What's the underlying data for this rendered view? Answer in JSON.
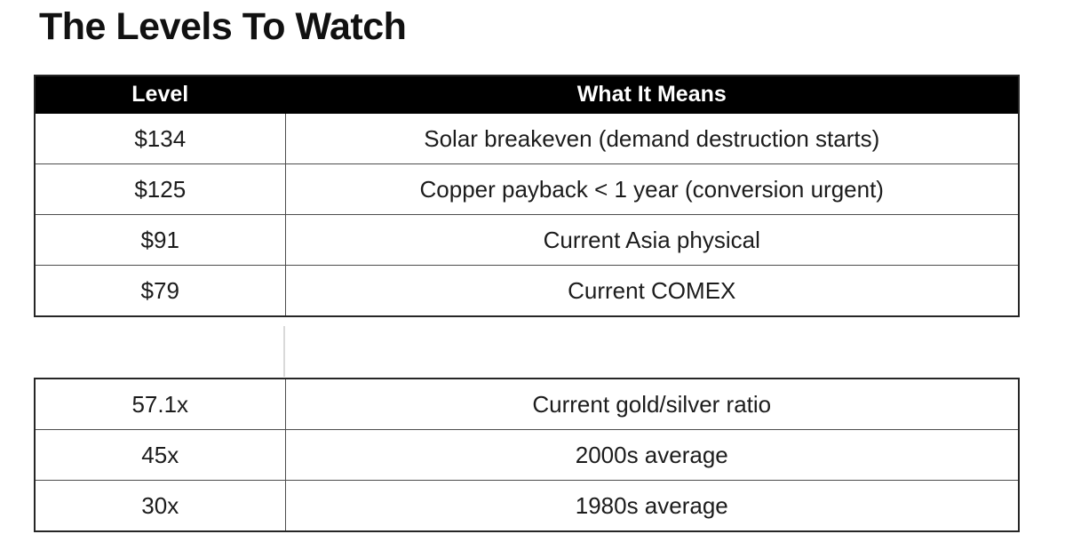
{
  "title": "The Levels To Watch",
  "table1": {
    "headers": [
      "Level",
      "What It Means"
    ],
    "rows": [
      {
        "level": "$134",
        "meaning": "Solar breakeven (demand destruction starts)"
      },
      {
        "level": "$125",
        "meaning": "Copper payback < 1 year (conversion urgent)"
      },
      {
        "level": "$91",
        "meaning": "Current Asia physical"
      },
      {
        "level": "$79",
        "meaning": "Current COMEX"
      }
    ]
  },
  "table2": {
    "rows": [
      {
        "level": "57.1x",
        "meaning": "Current gold/silver ratio"
      },
      {
        "level": "45x",
        "meaning": "2000s average"
      },
      {
        "level": "30x",
        "meaning": "1980s average"
      }
    ]
  },
  "colors": {
    "header_bg": "#000000",
    "header_text": "#ffffff",
    "body_text": "#1c1c1c",
    "inner_border": "#4d4d4d",
    "outer_border": "#262626",
    "gap_divider": "#d9d9d9"
  },
  "chart_data": [
    {
      "type": "table",
      "title": "The Levels To Watch",
      "columns": [
        "Level",
        "What It Means"
      ],
      "rows": [
        [
          "$134",
          "Solar breakeven (demand destruction starts)"
        ],
        [
          "$125",
          "Copper payback < 1 year (conversion urgent)"
        ],
        [
          "$91",
          "Current Asia physical"
        ],
        [
          "$79",
          "Current COMEX"
        ]
      ]
    },
    {
      "type": "table",
      "title": "",
      "columns": [
        "Level",
        "What It Means"
      ],
      "rows": [
        [
          "57.1x",
          "Current gold/silver ratio"
        ],
        [
          "45x",
          "2000s average"
        ],
        [
          "30x",
          "1980s average"
        ]
      ]
    }
  ]
}
